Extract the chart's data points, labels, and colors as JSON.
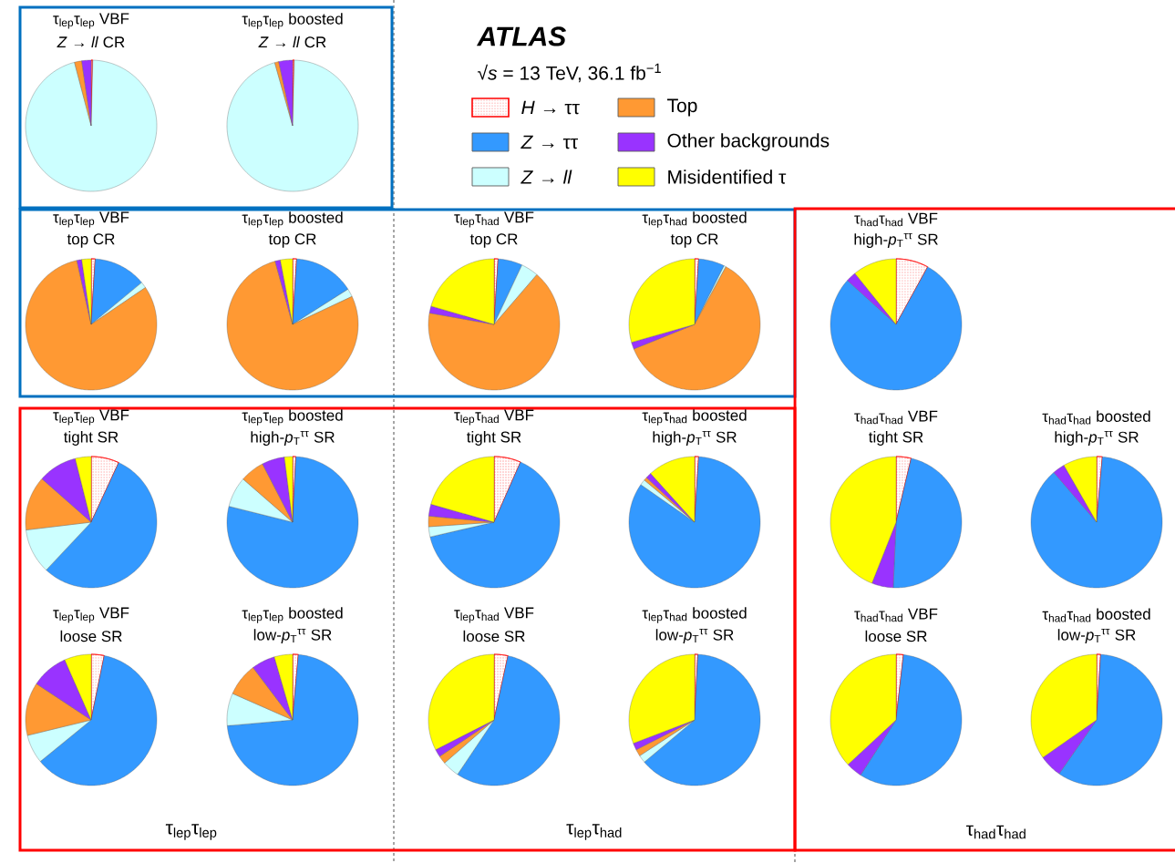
{
  "chart_data": [
    {
      "type": "pie",
      "title": "τ$_{lep}$τ$_{lep}$ VBF",
      "subtitle": "*Z* → *ll* CR",
      "categories": [
        null,
        null,
        null,
        null,
        null,
        null
      ],
      "values": [
        0.4,
        0,
        95.5,
        1.8,
        2.3,
        0
      ],
      "colors": [
        "#ff0000",
        "#3399ff",
        "#ccffff",
        "#ff9933",
        "#9933ff",
        "#ffff00"
      ]
    },
    {
      "type": "pie",
      "title": "τ$_{lep}$τ$_{lep}$ boosted",
      "subtitle": "*Z* → *ll* CR",
      "categories": [
        "*H* → ττ",
        "*Z* → ττ",
        "*Z* → *ll*",
        "Top",
        "Other backgrounds",
        "Misidentified τ"
      ],
      "values": [
        0.4,
        0,
        95.2,
        1.0,
        3.4,
        0
      ],
      "colors": [
        "#ff0000",
        "#3399ff",
        "#ccffff",
        "#ff9933",
        "#9933ff",
        "#ffff00"
      ],
      "legend": "right",
      "annotations": [
        "ATLAS",
        "√*s* = 13 TeV, 36.1 fb$^{−1}$"
      ]
    },
    {
      "type": "pie",
      "title": "τ$_{lep}$τ$_{lep}$ VBF",
      "subtitle": "top CR",
      "categories": [
        null,
        null,
        null,
        null,
        null,
        null
      ],
      "values": [
        1,
        13,
        1.5,
        81,
        1.2,
        2.3
      ],
      "colors": [
        "#ff0000",
        "#3399ff",
        "#ccffff",
        "#ff9933",
        "#9933ff",
        "#ffff00"
      ]
    },
    {
      "type": "pie",
      "title": "τ$_{lep}$τ$_{lep}$ boosted",
      "subtitle": "top CR",
      "categories": [
        null,
        null,
        null,
        null,
        null,
        null
      ],
      "values": [
        1,
        15,
        2,
        77.7,
        1.3,
        3
      ],
      "colors": [
        "#ff0000",
        "#3399ff",
        "#ccffff",
        "#ff9933",
        "#9933ff",
        "#ffff00"
      ]
    },
    {
      "type": "pie",
      "title": "τ$_{lep}$τ$_{had}$ VBF",
      "subtitle": "top CR",
      "categories": [
        null,
        null,
        null,
        null,
        null,
        null
      ],
      "values": [
        1,
        6,
        4.3,
        66.5,
        1.7,
        20.5
      ],
      "colors": [
        "#ff0000",
        "#3399ff",
        "#ccffff",
        "#ff9933",
        "#9933ff",
        "#ffff00"
      ]
    },
    {
      "type": "pie",
      "title": "τ$_{lep}$τ$_{had}$ boosted",
      "subtitle": "top CR",
      "categories": [
        null,
        null,
        null,
        null,
        null,
        null
      ],
      "values": [
        1,
        6.4,
        0.5,
        61,
        1.7,
        29.4
      ],
      "colors": [
        "#ff0000",
        "#3399ff",
        "#ccffff",
        "#ff9933",
        "#9933ff",
        "#ffff00"
      ]
    },
    {
      "type": "pie",
      "title": "τ$_{had}$τ$_{had}$ VBF",
      "subtitle": "high-*p*$_{T}$$^{ττ}$ SR",
      "categories": [
        null,
        null,
        null,
        null,
        null,
        null
      ],
      "values": [
        8,
        78.7,
        0,
        0,
        2.5,
        10.8
      ],
      "colors": [
        "#ff0000",
        "#3399ff",
        "#ccffff",
        "#ff9933",
        "#9933ff",
        "#ffff00"
      ]
    },
    {
      "type": "pie",
      "title": "τ$_{lep}$τ$_{lep}$ VBF",
      "subtitle": "tight SR",
      "categories": [
        null,
        null,
        null,
        null,
        null,
        null
      ],
      "values": [
        6.9,
        55.1,
        11.1,
        13.4,
        9.6,
        3.9
      ],
      "colors": [
        "#ff0000",
        "#3399ff",
        "#ccffff",
        "#ff9933",
        "#9933ff",
        "#ffff00"
      ]
    },
    {
      "type": "pie",
      "title": "τ$_{lep}$τ$_{lep}$ boosted",
      "subtitle": "high-*p*$_{T}$$^{ττ}$ SR",
      "categories": [
        null,
        null,
        null,
        null,
        null,
        null
      ],
      "values": [
        0.8,
        78.1,
        7.5,
        6,
        5.6,
        2
      ],
      "colors": [
        "#ff0000",
        "#3399ff",
        "#ccffff",
        "#ff9933",
        "#9933ff",
        "#ffff00"
      ]
    },
    {
      "type": "pie",
      "title": "τ$_{lep}$τ$_{had}$ VBF",
      "subtitle": "tight SR",
      "categories": [
        null,
        null,
        null,
        null,
        null,
        null
      ],
      "values": [
        6.6,
        64.8,
        2.5,
        2.6,
        2.9,
        20.6
      ],
      "colors": [
        "#ff0000",
        "#3399ff",
        "#ccffff",
        "#ff9933",
        "#9933ff",
        "#ffff00"
      ]
    },
    {
      "type": "pie",
      "title": "τ$_{lep}$τ$_{had}$ boosted",
      "subtitle": "high-*p*$_{T}$$^{ττ}$ SR",
      "categories": [
        null,
        null,
        null,
        null,
        null,
        null
      ],
      "values": [
        1,
        83.7,
        1.4,
        0.8,
        1.4,
        11.7
      ],
      "colors": [
        "#ff0000",
        "#3399ff",
        "#ccffff",
        "#ff9933",
        "#9933ff",
        "#ffff00"
      ]
    },
    {
      "type": "pie",
      "title": "τ$_{had}$τ$_{had}$ VBF",
      "subtitle": "tight SR",
      "categories": [
        null,
        null,
        null,
        null,
        null,
        null
      ],
      "values": [
        3.7,
        47,
        0,
        0,
        5.3,
        44
      ],
      "colors": [
        "#ff0000",
        "#3399ff",
        "#ccffff",
        "#ff9933",
        "#9933ff",
        "#ffff00"
      ]
    },
    {
      "type": "pie",
      "title": "τ$_{had}$τ$_{had}$ boosted",
      "subtitle": "high-*p*$_{T}$$^{ττ}$ SR",
      "categories": [
        null,
        null,
        null,
        null,
        null,
        null
      ],
      "values": [
        1.4,
        87.3,
        0,
        0,
        3,
        8.3
      ],
      "colors": [
        "#ff0000",
        "#3399ff",
        "#ccffff",
        "#ff9933",
        "#9933ff",
        "#ffff00"
      ]
    },
    {
      "type": "pie",
      "title": "τ$_{lep}$τ$_{lep}$ VBF",
      "subtitle": "loose SR",
      "categories": [
        null,
        null,
        null,
        null,
        null,
        null
      ],
      "values": [
        3.2,
        60.9,
        7.1,
        13.1,
        9.1,
        6.6
      ],
      "colors": [
        "#ff0000",
        "#3399ff",
        "#ccffff",
        "#ff9933",
        "#9933ff",
        "#ffff00"
      ],
      "annotations": [
        "τ$_{lep}$τ$_{lep}$"
      ]
    },
    {
      "type": "pie",
      "title": "τ$_{lep}$τ$_{lep}$ boosted",
      "subtitle": "low-*p*$_{T}$$^{ττ}$ SR",
      "categories": [
        null,
        null,
        null,
        null,
        null,
        null
      ],
      "values": [
        1.4,
        72.2,
        8,
        8.1,
        5.8,
        4.5
      ],
      "colors": [
        "#ff0000",
        "#3399ff",
        "#ccffff",
        "#ff9933",
        "#9933ff",
        "#ffff00"
      ]
    },
    {
      "type": "pie",
      "title": "τ$_{lep}$τ$_{had}$ VBF",
      "subtitle": "loose SR",
      "categories": [
        null,
        null,
        null,
        null,
        null,
        null
      ],
      "values": [
        3.4,
        56,
        4.2,
        2,
        1.9,
        32.5
      ],
      "colors": [
        "#ff0000",
        "#3399ff",
        "#ccffff",
        "#ff9933",
        "#9933ff",
        "#ffff00"
      ],
      "annotations": [
        "τ$_{lep}$τ$_{had}$"
      ]
    },
    {
      "type": "pie",
      "title": "τ$_{lep}$τ$_{had}$ boosted",
      "subtitle": "low-*p*$_{T}$$^{ττ}$ SR",
      "categories": [
        null,
        null,
        null,
        null,
        null,
        null
      ],
      "values": [
        0.8,
        63.1,
        1.9,
        1.7,
        1.7,
        30.8
      ],
      "colors": [
        "#ff0000",
        "#3399ff",
        "#ccffff",
        "#ff9933",
        "#9933ff",
        "#ffff00"
      ]
    },
    {
      "type": "pie",
      "title": "τ$_{had}$τ$_{had}$ VBF",
      "subtitle": "loose SR",
      "categories": [
        null,
        null,
        null,
        null,
        null,
        null
      ],
      "values": [
        1.8,
        57.3,
        0,
        0,
        4,
        36.9
      ],
      "colors": [
        "#ff0000",
        "#3399ff",
        "#ccffff",
        "#ff9933",
        "#9933ff",
        "#ffff00"
      ],
      "annotations": [
        "τ$_{had}$τ$_{had}$"
      ]
    },
    {
      "type": "pie",
      "title": "τ$_{had}$τ$_{had}$ boosted",
      "subtitle": "low-*p*$_{T}$$^{ττ}$ SR",
      "categories": [
        null,
        null,
        null,
        null,
        null,
        null
      ],
      "values": [
        1,
        58.7,
        0,
        0,
        5.6,
        34.7
      ],
      "colors": [
        "#ff0000",
        "#3399ff",
        "#ccffff",
        "#ff9933",
        "#9933ff",
        "#ffff00"
      ]
    }
  ]
}
